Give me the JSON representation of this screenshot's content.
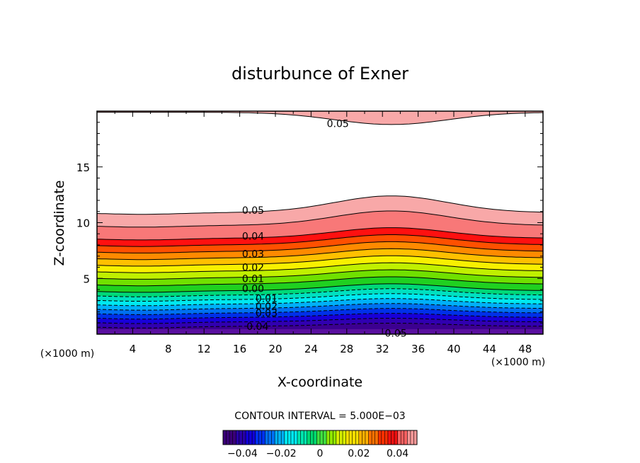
{
  "chart_data": {
    "type": "contour",
    "title": "disturbunce of Exner",
    "xlabel": "X-coordinate",
    "ylabel": "Z-coordinate",
    "x_unit": "(×1000 m)",
    "xlim": [
      0,
      50
    ],
    "ylim": [
      0,
      20
    ],
    "x_ticks": [
      4,
      8,
      12,
      16,
      20,
      24,
      28,
      32,
      36,
      40,
      44,
      48
    ],
    "y_ticks": [
      5,
      10,
      15
    ],
    "contour_interval_label": "CONTOUR INTERVAL = 5.000E−03",
    "contour_interval": 0.005,
    "colorbar_range": [
      -0.05,
      0.05
    ],
    "colorbar_ticks": [
      "−0.04",
      "−0.02",
      "0",
      "0.02",
      "0.04"
    ],
    "contour_labels": [
      {
        "text": "0.05",
        "x": 27,
        "z": 18.9
      },
      {
        "text": "0.05",
        "x": 17.5,
        "z": 11.1
      },
      {
        "text": "0.04",
        "x": 17.5,
        "z": 8.8
      },
      {
        "text": "0.03",
        "x": 17.5,
        "z": 7.2
      },
      {
        "text": "0.02",
        "x": 17.5,
        "z": 6.0
      },
      {
        "text": "0.01",
        "x": 17.5,
        "z": 5.0
      },
      {
        "text": "0.00",
        "x": 17.5,
        "z": 4.1
      },
      {
        "text": "0.01",
        "x": 19,
        "z": 3.2
      },
      {
        "text": "0.02",
        "x": 19,
        "z": 2.5
      },
      {
        "text": "0.03",
        "x": 19,
        "z": 1.9
      },
      {
        "text": "0.04",
        "x": 18,
        "z": 0.7
      },
      {
        "text": "0.05",
        "x": 33.5,
        "z": 0.1
      }
    ],
    "bands": [
      {
        "value": 0.05,
        "color": "#f8a8a8"
      },
      {
        "value": 0.045,
        "color": "#f87878"
      },
      {
        "value": 0.04,
        "color": "#ff1010"
      },
      {
        "value": 0.035,
        "color": "#ff5000"
      },
      {
        "value": 0.03,
        "color": "#ff8a00"
      },
      {
        "value": 0.025,
        "color": "#ffc000"
      },
      {
        "value": 0.02,
        "color": "#f8f000"
      },
      {
        "value": 0.015,
        "color": "#c0f000"
      },
      {
        "value": 0.01,
        "color": "#70e000"
      },
      {
        "value": 0.005,
        "color": "#20d020"
      },
      {
        "value": 0.0,
        "color": "#00d878"
      },
      {
        "value": -0.005,
        "color": "#00e0c0"
      },
      {
        "value": -0.01,
        "color": "#00e8f0"
      },
      {
        "value": -0.015,
        "color": "#00b0f8"
      },
      {
        "value": -0.02,
        "color": "#0070f0"
      },
      {
        "value": -0.025,
        "color": "#0030e8"
      },
      {
        "value": -0.03,
        "color": "#1800d8"
      },
      {
        "value": -0.035,
        "color": "#3000b0"
      },
      {
        "value": -0.04,
        "color": "#3c0090"
      }
    ],
    "colorbar_colors": [
      "#3a0078",
      "#2800a8",
      "#1000d8",
      "#0030f0",
      "#0070f8",
      "#00b0f8",
      "#00e8f0",
      "#00e8b0",
      "#00d870",
      "#40e040",
      "#90e800",
      "#d8f000",
      "#f8e000",
      "#ffb000",
      "#ff7000",
      "#ff3000",
      "#f01010",
      "#f86060",
      "#f89898"
    ]
  }
}
